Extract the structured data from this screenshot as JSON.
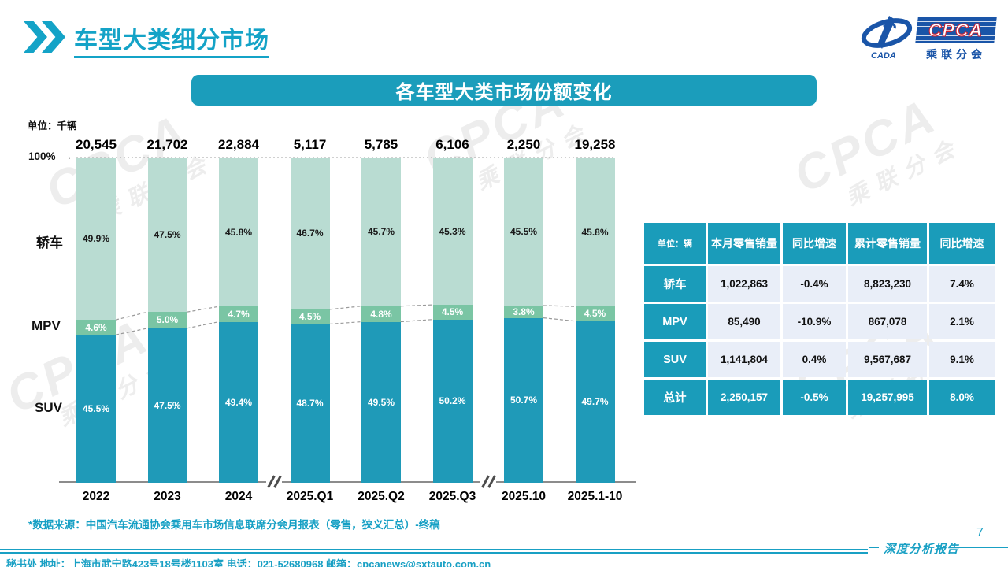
{
  "page": {
    "title": "车型大类细分市场",
    "page_number": "7",
    "report_label": "深度分析报告",
    "footer": "秘书处  地址：上海市武宁路423号18号楼1103室  电话：021-52680968   邮箱：cpcanews@sxtauto.com.cn",
    "footnote": "*数据来源：中国汽车流通协会乘用车市场信息联席分会月报表（零售，狭义汇总）-终稿"
  },
  "logo": {
    "cpca": "CPCA",
    "cada": "CADA",
    "subtitle": "乘联分会"
  },
  "watermark": {
    "line1": "CPCA",
    "line2": "乘联分会"
  },
  "chart_title": "各车型大类市场份额变化",
  "unit_label": "单位：千辆",
  "axis": {
    "label": "100%",
    "arrow": "→"
  },
  "chart_data": {
    "type": "bar",
    "stacked": true,
    "unit": "千辆",
    "title": "各车型大类市场份额变化",
    "categories": [
      "2022",
      "2023",
      "2024",
      "2025.Q1",
      "2025.Q2",
      "2025.Q3",
      "2025.10",
      "2025.1-10"
    ],
    "totals": [
      "20,545",
      "21,702",
      "22,884",
      "5,117",
      "5,785",
      "6,106",
      "2,250",
      "19,258"
    ],
    "series": [
      {
        "name": "轿车",
        "values": [
          49.9,
          47.5,
          45.8,
          46.7,
          45.7,
          45.3,
          45.5,
          45.8
        ],
        "color": "#b9dcd2"
      },
      {
        "name": "MPV",
        "values": [
          4.6,
          5.0,
          4.7,
          4.5,
          4.8,
          4.5,
          3.8,
          4.5
        ],
        "color": "#7ac5a4"
      },
      {
        "name": "SUV",
        "values": [
          45.5,
          47.5,
          49.4,
          48.7,
          49.5,
          50.2,
          50.7,
          49.7
        ],
        "color": "#1f9ab8"
      }
    ],
    "ylim": [
      0,
      100
    ],
    "grid": false,
    "legend_position": "left-category-labels",
    "axis_breaks_after": [
      2,
      5
    ],
    "connector_groups": [
      [
        0,
        1,
        2
      ],
      [
        3,
        4,
        5
      ],
      [
        6,
        7
      ]
    ]
  },
  "table": {
    "header": [
      "单位：辆",
      "本月零售销量",
      "同比增速",
      "累计零售销量",
      "同比增速"
    ],
    "rows": [
      {
        "label": "轿车",
        "cells": [
          "1,022,863",
          "-0.4%",
          "8,823,230",
          "7.4%"
        ]
      },
      {
        "label": "MPV",
        "cells": [
          "85,490",
          "-10.9%",
          "867,078",
          "2.1%"
        ]
      },
      {
        "label": "SUV",
        "cells": [
          "1,141,804",
          "0.4%",
          "9,567,687",
          "9.1%"
        ]
      },
      {
        "label": "总计",
        "cells": [
          "2,250,157",
          "-0.5%",
          "19,257,995",
          "8.0%"
        ]
      }
    ]
  },
  "colors": {
    "accent": "#1a9cba",
    "mint": "#b9dcd2",
    "green": "#7ac5a4",
    "teal_bar": "#1f9ab8",
    "cell_bg": "#e9eef8",
    "heading": "#14a3c7",
    "logo_blue": "#1a55a8"
  }
}
